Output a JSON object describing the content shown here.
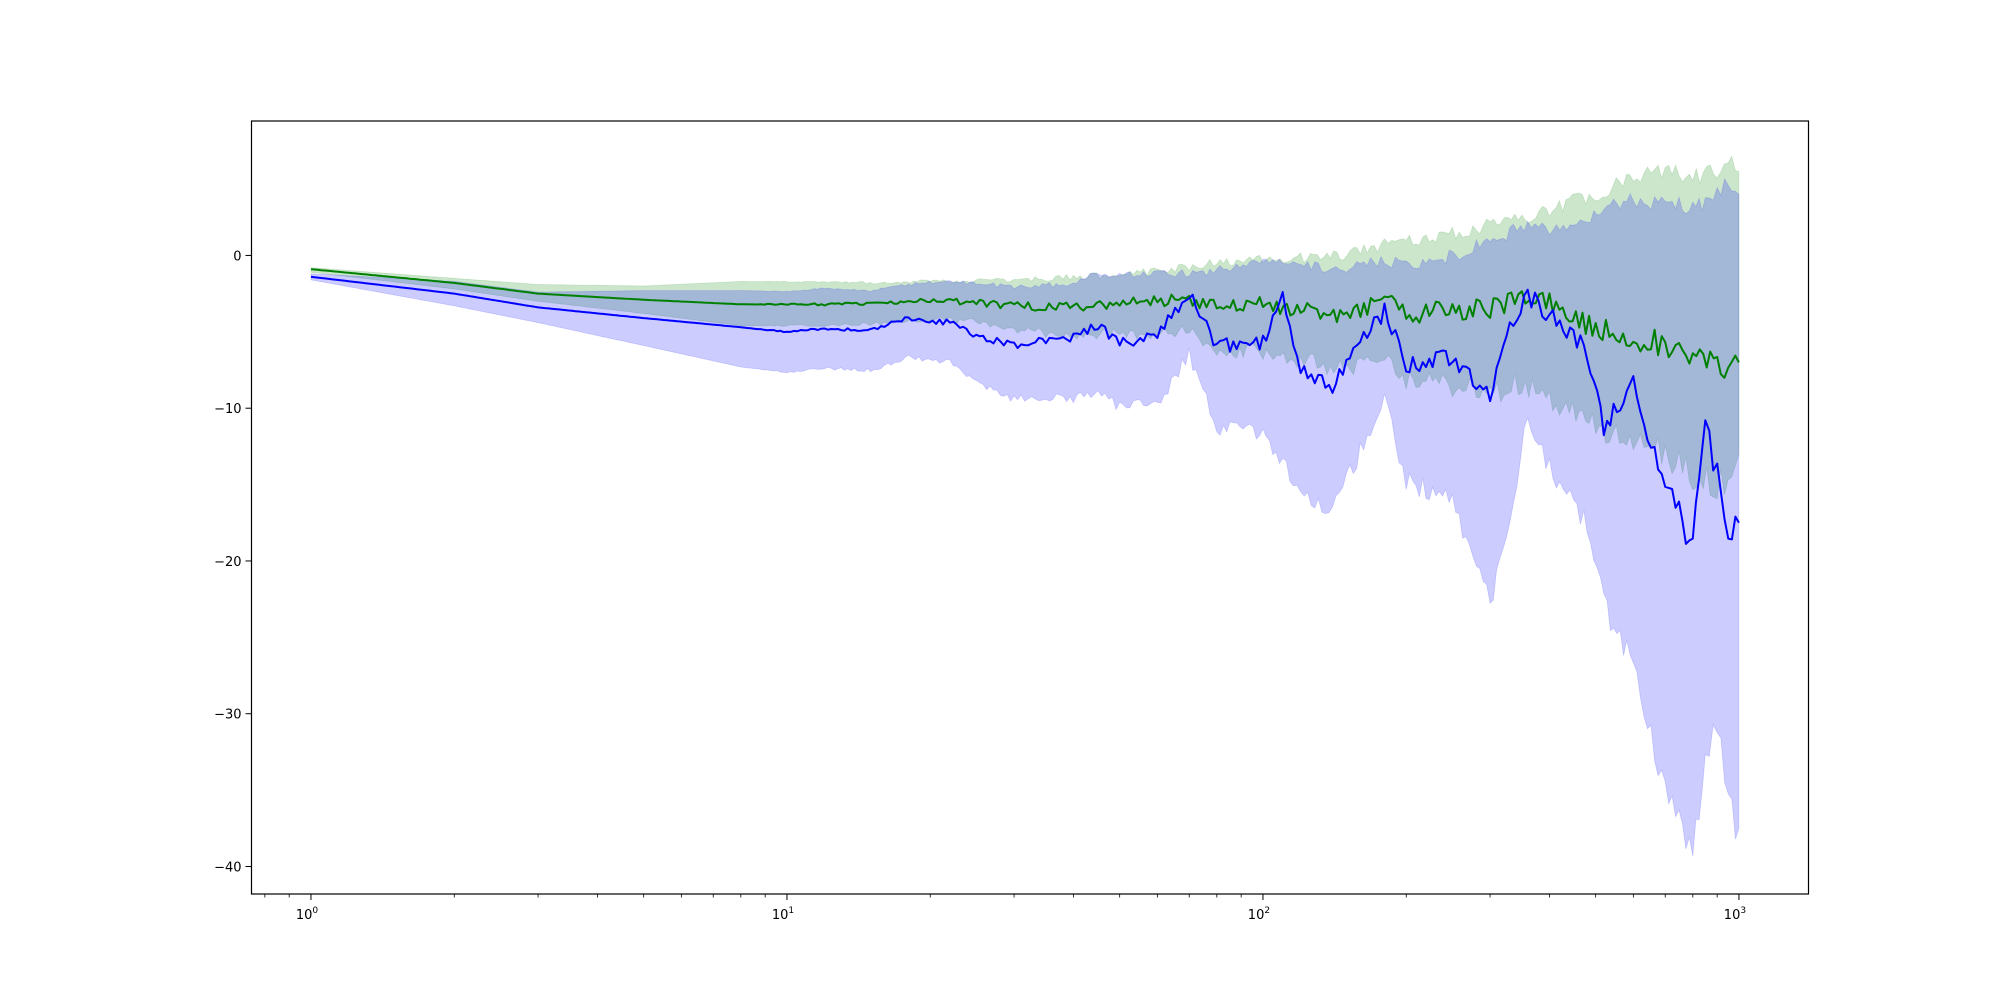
{
  "chart_data": {
    "type": "line",
    "title": "",
    "xlabel": "",
    "ylabel": "",
    "x_scale": "log",
    "xlim": [
      0.75,
      1400
    ],
    "ylim": [
      -41.8,
      8.8
    ],
    "grid": false,
    "legend": "none",
    "x_ticks": [
      {
        "value": 1,
        "base": "10",
        "exp": "0"
      },
      {
        "value": 10,
        "base": "10",
        "exp": "1"
      },
      {
        "value": 100,
        "base": "10",
        "exp": "2"
      },
      {
        "value": 1000,
        "base": "10",
        "exp": "3"
      }
    ],
    "y_ticks": [
      {
        "value": 0,
        "label": "0"
      },
      {
        "value": -10,
        "label": "−10"
      },
      {
        "value": -20,
        "label": "−20"
      },
      {
        "value": -30,
        "label": "−30"
      },
      {
        "value": -40,
        "label": "−40"
      }
    ],
    "series": [
      {
        "color": "#008000",
        "band_color": "#008000",
        "band_opacity": 0.2,
        "points": [
          [
            1,
            -0.9,
            -0.8,
            -1.1
          ],
          [
            2,
            -1.8,
            -1.5,
            -2.2
          ],
          [
            3,
            -2.5,
            -1.9,
            -3.0
          ],
          [
            5,
            -2.9,
            -2.0,
            -3.8
          ],
          [
            8,
            -3.2,
            -1.7,
            -4.6
          ],
          [
            12,
            -3.2,
            -1.8,
            -4.5
          ],
          [
            16,
            -3.1,
            -1.9,
            -4.3
          ],
          [
            20,
            -2.9,
            -1.8,
            -3.9
          ],
          [
            25,
            -3.1,
            -1.8,
            -4.1
          ],
          [
            30,
            -3.3,
            -1.8,
            -4.6
          ],
          [
            40,
            -3.4,
            -1.6,
            -4.9
          ],
          [
            50,
            -3.1,
            -1.5,
            -4.7
          ],
          [
            60,
            -3.0,
            -1.3,
            -4.8
          ],
          [
            70,
            -2.8,
            -1.0,
            -4.5
          ],
          [
            80,
            -3.4,
            -0.8,
            -5.7
          ],
          [
            100,
            -3.2,
            -0.6,
            -5.8
          ],
          [
            120,
            -3.6,
            -0.5,
            -6.3
          ],
          [
            150,
            -3.9,
            -0.3,
            -6.8
          ],
          [
            180,
            -2.8,
            0.3,
            -6.1
          ],
          [
            200,
            -4.0,
            0.5,
            -7.5
          ],
          [
            250,
            -3.5,
            1.0,
            -7.8
          ],
          [
            300,
            -3.6,
            1.5,
            -8.3
          ],
          [
            350,
            -2.6,
            2.0,
            -7.6
          ],
          [
            400,
            -3.1,
            2.5,
            -8.4
          ],
          [
            500,
            -4.8,
            3.5,
            -10.5
          ],
          [
            600,
            -5.4,
            4.5,
            -11.5
          ],
          [
            700,
            -5.8,
            5.0,
            -12.0
          ],
          [
            800,
            -6.8,
            4.5,
            -13.5
          ],
          [
            900,
            -7.2,
            5.0,
            -14.0
          ],
          [
            1000,
            -7.0,
            5.5,
            -13.0
          ]
        ]
      },
      {
        "color": "#0000ff",
        "band_color": "#0000ff",
        "band_opacity": 0.2,
        "points": [
          [
            1,
            -1.4,
            -1.2,
            -1.6
          ],
          [
            2,
            -2.5,
            -1.7,
            -3.3
          ],
          [
            3,
            -3.4,
            -2.4,
            -4.4
          ],
          [
            5,
            -4.1,
            -2.3,
            -5.9
          ],
          [
            8,
            -4.7,
            -2.3,
            -7.3
          ],
          [
            10,
            -5.0,
            -2.4,
            -7.6
          ],
          [
            12,
            -4.8,
            -2.2,
            -7.3
          ],
          [
            15,
            -4.9,
            -2.4,
            -7.4
          ],
          [
            18,
            -4.1,
            -2.0,
            -6.5
          ],
          [
            22,
            -4.4,
            -1.8,
            -6.8
          ],
          [
            25,
            -5.2,
            -2.0,
            -8.1
          ],
          [
            30,
            -5.9,
            -2.2,
            -9.1
          ],
          [
            35,
            -5.6,
            -2.1,
            -9.1
          ],
          [
            40,
            -5.4,
            -2.2,
            -9.0
          ],
          [
            45,
            -4.5,
            -1.3,
            -8.5
          ],
          [
            50,
            -5.8,
            -1.5,
            -9.5
          ],
          [
            60,
            -5.1,
            -1.4,
            -9.4
          ],
          [
            70,
            -2.5,
            -1.5,
            -6.0
          ],
          [
            80,
            -5.9,
            -1.3,
            -10.8
          ],
          [
            100,
            -5.7,
            -0.6,
            -11.0
          ],
          [
            110,
            -2.3,
            -0.6,
            -13.0
          ],
          [
            120,
            -7.6,
            -1.0,
            -15.0
          ],
          [
            140,
            -8.5,
            -1.3,
            -16.0
          ],
          [
            180,
            -3.6,
            -0.8,
            -9.0
          ],
          [
            200,
            -7.2,
            -1.0,
            -14.0
          ],
          [
            250,
            -6.5,
            -0.5,
            -15.5
          ],
          [
            300,
            -9.5,
            0.5,
            -22.0
          ],
          [
            330,
            -4.5,
            1.0,
            -16.0
          ],
          [
            360,
            -2.8,
            1.5,
            -10.0
          ],
          [
            400,
            -3.7,
            1.0,
            -13.0
          ],
          [
            480,
            -6.2,
            2.0,
            -17.0
          ],
          [
            520,
            -11.5,
            2.5,
            -22.0
          ],
          [
            600,
            -8.5,
            3.0,
            -26.0
          ],
          [
            700,
            -15.0,
            3.0,
            -34.0
          ],
          [
            800,
            -19.0,
            2.5,
            -38.0
          ],
          [
            850,
            -11.0,
            3.0,
            -32.0
          ],
          [
            900,
            -14.5,
            3.5,
            -30.0
          ],
          [
            950,
            -18.0,
            4.0,
            -34.0
          ],
          [
            1000,
            -17.5,
            4.0,
            -37.5
          ]
        ]
      }
    ]
  }
}
